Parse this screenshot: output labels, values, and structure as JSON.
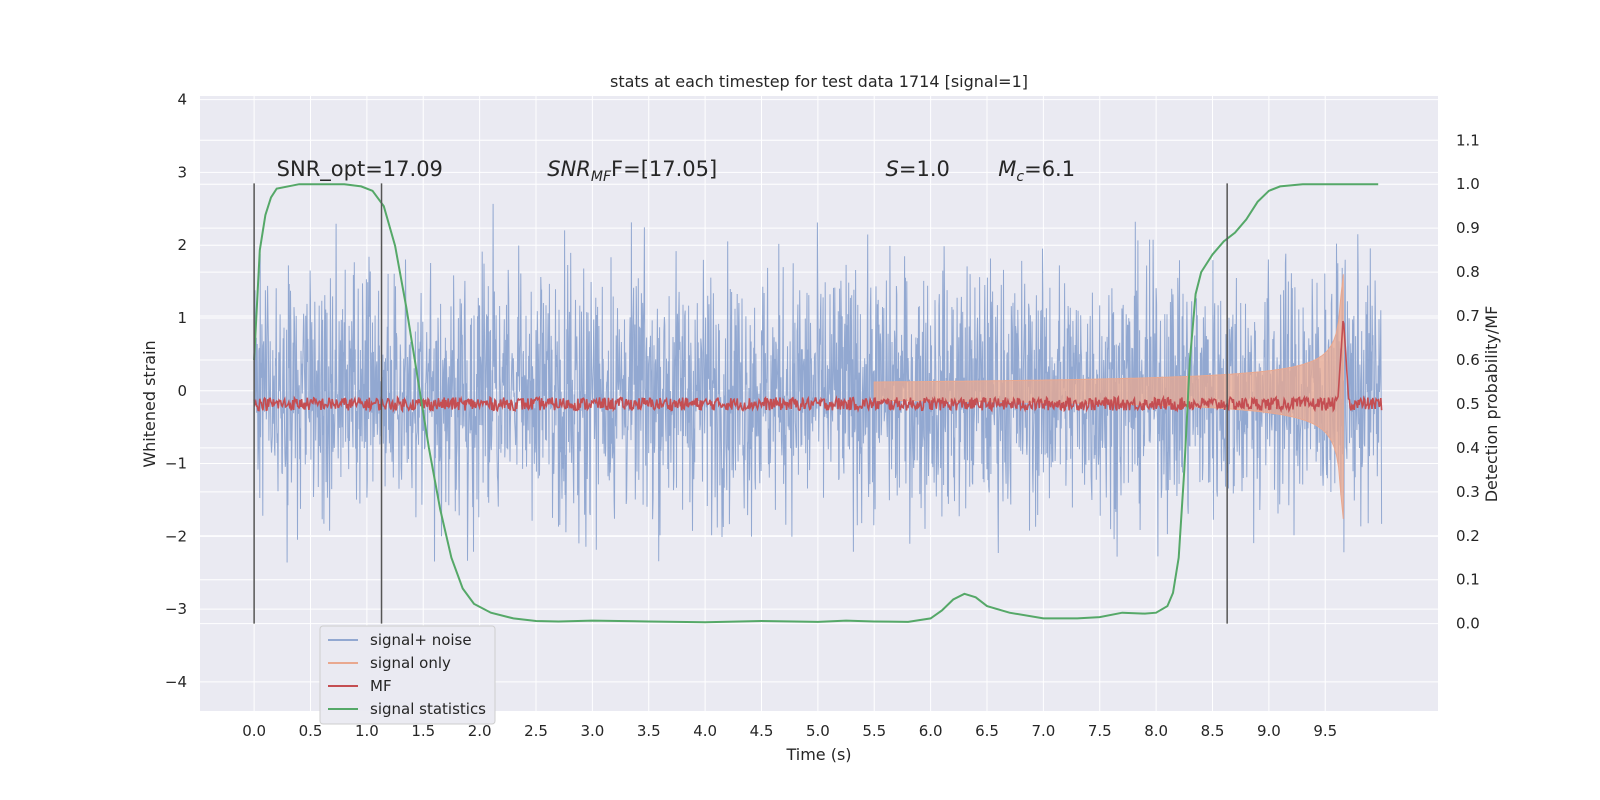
{
  "chart_data": {
    "type": "line",
    "title": "stats at each timestep for test data 1714 [signal=1]",
    "xlabel": "Time (s)",
    "ylabel_left": "Whitened strain",
    "ylabel_right": "Detection probability/MF",
    "x_ticks": [
      "0.0",
      "0.5",
      "1.0",
      "1.5",
      "2.0",
      "2.5",
      "3.0",
      "3.5",
      "4.0",
      "4.5",
      "5.0",
      "5.5",
      "6.0",
      "6.5",
      "7.0",
      "7.5",
      "8.0",
      "8.5",
      "9.0",
      "9.5"
    ],
    "y_left_ticks": [
      "−4",
      "−3",
      "−2",
      "−1",
      "0",
      "1",
      "2",
      "3",
      "4"
    ],
    "y_right_ticks": [
      "0.0",
      "0.1",
      "0.2",
      "0.3",
      "0.4",
      "0.5",
      "0.6",
      "0.7",
      "0.8",
      "0.9",
      "1.0",
      "1.1"
    ],
    "xlim": [
      -0.48,
      10.5
    ],
    "ylim_left": [
      -4.4,
      4.05
    ],
    "ylim_right_at_left_zero": 0.53,
    "grid": true,
    "legend_position": "lower-left",
    "annotations": [
      {
        "prefix": "SNR_opt=17.09",
        "main": "",
        "sub": "",
        "suffix": "",
        "x": 0.2
      },
      {
        "prefix": "",
        "main": "SNR",
        "sub": "MF",
        "suffix": "F=[17.05]",
        "x": 2.6
      },
      {
        "prefix": "",
        "main": "S",
        "sub": "",
        "suffix": "=1.0",
        "x": 5.6
      },
      {
        "prefix": "",
        "main": "M",
        "sub": "c",
        "suffix": "=6.1",
        "x": 6.6
      }
    ],
    "vertical_markers": [
      0.0,
      1.13,
      8.63
    ],
    "series": [
      {
        "name": "signal+ noise",
        "color": "#92a8d1",
        "kind": "noise",
        "x_range": [
          0.0,
          10.0
        ],
        "amplitude": 1.15
      },
      {
        "name": "signal only",
        "color": "#e9a88f",
        "kind": "chirp",
        "x_range": [
          5.5,
          9.66
        ],
        "peak": 1.6
      },
      {
        "name": "MF",
        "color": "#c44e52",
        "kind": "mf",
        "x_range": [
          0.0,
          10.0
        ],
        "level": 0.5,
        "peak_x": 9.66,
        "peak_value": 0.7
      },
      {
        "name": "signal statistics",
        "color": "#55a868",
        "kind": "line",
        "x": [
          0.0,
          0.05,
          0.1,
          0.15,
          0.2,
          0.4,
          0.6,
          0.8,
          0.95,
          1.05,
          1.15,
          1.25,
          1.35,
          1.45,
          1.55,
          1.65,
          1.75,
          1.85,
          1.95,
          2.1,
          2.3,
          2.5,
          2.7,
          3.0,
          3.5,
          4.0,
          4.5,
          5.0,
          5.25,
          5.5,
          5.8,
          6.0,
          6.1,
          6.2,
          6.3,
          6.4,
          6.5,
          6.7,
          7.0,
          7.3,
          7.5,
          7.7,
          7.9,
          8.0,
          8.1,
          8.15,
          8.2,
          8.25,
          8.3,
          8.35,
          8.4,
          8.5,
          8.6,
          8.7,
          8.8,
          8.9,
          9.0,
          9.1,
          9.3,
          9.5,
          9.7,
          9.97
        ],
        "values": [
          0.6,
          0.85,
          0.93,
          0.97,
          0.99,
          1.0,
          1.0,
          1.0,
          0.995,
          0.985,
          0.95,
          0.86,
          0.72,
          0.56,
          0.4,
          0.26,
          0.15,
          0.08,
          0.045,
          0.025,
          0.012,
          0.006,
          0.005,
          0.007,
          0.005,
          0.003,
          0.006,
          0.004,
          0.007,
          0.005,
          0.004,
          0.012,
          0.03,
          0.055,
          0.068,
          0.06,
          0.04,
          0.025,
          0.012,
          0.012,
          0.015,
          0.025,
          0.023,
          0.025,
          0.04,
          0.07,
          0.15,
          0.35,
          0.6,
          0.75,
          0.8,
          0.84,
          0.87,
          0.89,
          0.92,
          0.96,
          0.985,
          0.995,
          1.0,
          1.0,
          1.0,
          1.0
        ]
      }
    ]
  }
}
